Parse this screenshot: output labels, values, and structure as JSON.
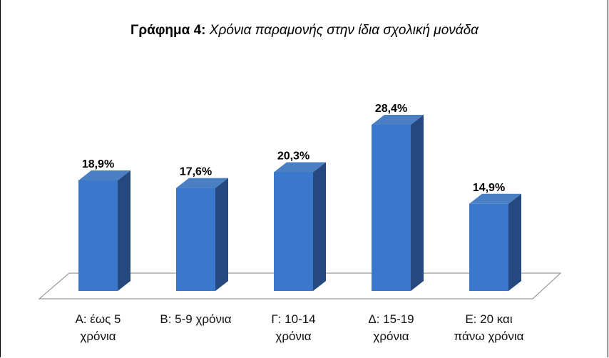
{
  "chart_data": {
    "type": "bar",
    "title_prefix": "Γράφημα 4:",
    "title_text": "Χρόνια παραμονής στην ίδια  σχολική μονάδα",
    "categories": [
      [
        "Α: έως 5",
        "χρόνια"
      ],
      [
        "Β: 5-9 χρόνια"
      ],
      [
        "Γ: 10-14",
        "χρόνια"
      ],
      [
        "Δ: 15-19",
        "χρόνια"
      ],
      [
        "Ε: 20 και",
        "πάνω χρόνια"
      ]
    ],
    "values": [
      18.9,
      17.6,
      20.3,
      28.4,
      14.9
    ],
    "value_labels": [
      "18,9%",
      "17,6%",
      "20,3%",
      "28,4%",
      "14,9%"
    ],
    "ylim": [
      0,
      30
    ],
    "grid": false,
    "legend": "none",
    "colors": {
      "bar_front": "#3a78cc",
      "bar_side": "#25487e",
      "bar_top": "#4a7fc4",
      "floor": "#ffffff",
      "floor_edge": "#9a9a9a"
    }
  }
}
